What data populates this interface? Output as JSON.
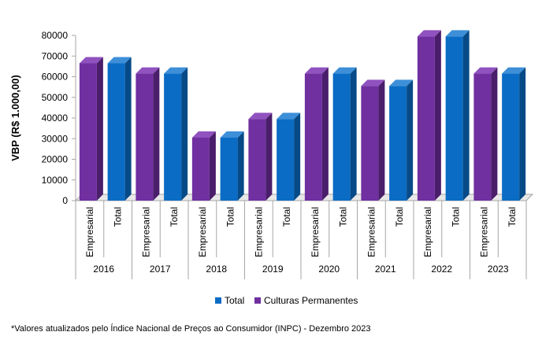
{
  "chart_data": {
    "type": "bar",
    "ylabel": "VBP (R$ 1.000,00)",
    "xlabel": "",
    "ylim": [
      0,
      80000
    ],
    "yticks": [
      "0",
      "10000",
      "20000",
      "30000",
      "40000",
      "50000",
      "60000",
      "70000",
      "80000"
    ],
    "ytick_values": [
      0,
      10000,
      20000,
      30000,
      40000,
      50000,
      60000,
      70000,
      80000
    ],
    "groups": [
      {
        "year": "2016",
        "bars": [
          {
            "label": "Empresarial",
            "series": "Culturas Permanentes",
            "value": 66500
          },
          {
            "label": "Total",
            "series": "Total",
            "value": 66500
          }
        ]
      },
      {
        "year": "2017",
        "bars": [
          {
            "label": "Empresarial",
            "series": "Culturas Permanentes",
            "value": 61500
          },
          {
            "label": "Total",
            "series": "Total",
            "value": 61500
          }
        ]
      },
      {
        "year": "2018",
        "bars": [
          {
            "label": "Empresarial",
            "series": "Culturas Permanentes",
            "value": 30500
          },
          {
            "label": "Total",
            "series": "Total",
            "value": 30500
          }
        ]
      },
      {
        "year": "2019",
        "bars": [
          {
            "label": "Empresarial",
            "series": "Culturas Permanentes",
            "value": 39500
          },
          {
            "label": "Total",
            "series": "Total",
            "value": 39500
          }
        ]
      },
      {
        "year": "2020",
        "bars": [
          {
            "label": "Empresarial",
            "series": "Culturas Permanentes",
            "value": 61500
          },
          {
            "label": "Total",
            "series": "Total",
            "value": 61500
          }
        ]
      },
      {
        "year": "2021",
        "bars": [
          {
            "label": "Empresarial",
            "series": "Culturas Permanentes",
            "value": 55500
          },
          {
            "label": "Total",
            "series": "Total",
            "value": 55500
          }
        ]
      },
      {
        "year": "2022",
        "bars": [
          {
            "label": "Empresarial",
            "series": "Culturas Permanentes",
            "value": 79500
          },
          {
            "label": "Total",
            "series": "Total",
            "value": 79500
          }
        ]
      },
      {
        "year": "2023",
        "bars": [
          {
            "label": "Empresarial",
            "series": "Culturas Permanentes",
            "value": 61500
          },
          {
            "label": "Total",
            "series": "Total",
            "value": 61500
          }
        ]
      }
    ],
    "legend": [
      {
        "name": "Total",
        "color": "#0a6cc4"
      },
      {
        "name": "Culturas Permanentes",
        "color": "#7030a0"
      }
    ],
    "legend_position": "bottom",
    "grid": false
  },
  "colors": {
    "Total": {
      "front": "#0a6cc4",
      "side": "#064a87",
      "top": "#3d8fd8"
    },
    "Culturas Permanentes": {
      "front": "#7030a0",
      "side": "#4a1e6b",
      "top": "#8f52bf"
    }
  },
  "footnote": "*Valores atualizados pelo Índice Nacional de Preços ao Consumidor (INPC) - Dezembro 2023"
}
